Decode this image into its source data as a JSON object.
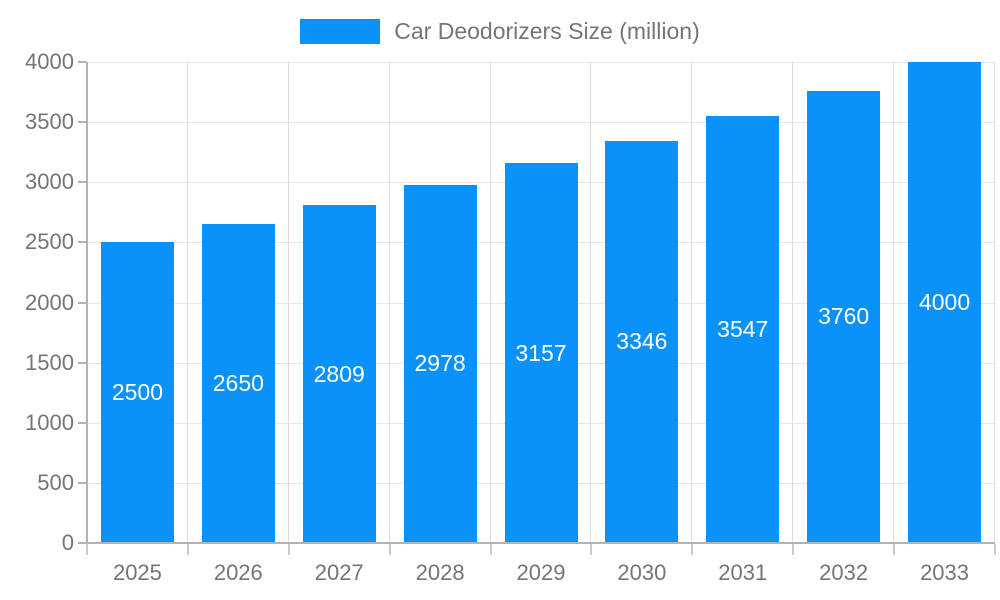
{
  "chart_data": {
    "type": "bar",
    "title": "Car Deodorizers Size (million)",
    "categories": [
      "2025",
      "2026",
      "2027",
      "2028",
      "2029",
      "2030",
      "2031",
      "2032",
      "2033"
    ],
    "values": [
      2500,
      2650,
      2809,
      2978,
      3157,
      3346,
      3547,
      3760,
      4000
    ],
    "xlabel": "",
    "ylabel": "",
    "ylim": [
      0,
      4000
    ],
    "ytick_step": 500,
    "ytick_labels": [
      "0",
      "500",
      "1000",
      "1500",
      "2000",
      "2500",
      "3000",
      "3500",
      "4000"
    ],
    "grid": true,
    "legend_position": "top-center",
    "bar_labels_inside": true,
    "colors": {
      "bar": "#0a91fa",
      "bar_label": "#ffffff",
      "axis_text": "#757575",
      "legend_text": "#757575",
      "grid_h": "#e6e6e6",
      "grid_v": "#dedede",
      "axis_line": "#b3b3b3",
      "background": "#ffffff"
    }
  },
  "legend": {
    "label": "Car Deodorizers Size (million)",
    "swatch_color": "#0a91fa"
  }
}
